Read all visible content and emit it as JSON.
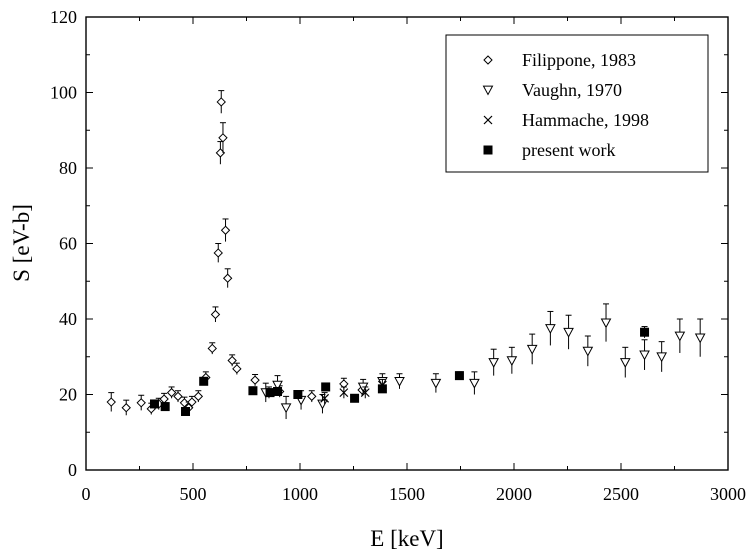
{
  "chart_data": {
    "type": "scatter",
    "xlabel": "E [keV]",
    "ylabel": "S [eV-b]",
    "xlim": [
      0,
      3000
    ],
    "ylim": [
      0,
      120
    ],
    "x_ticks": [
      0,
      500,
      1000,
      1500,
      2000,
      2500,
      3000
    ],
    "y_ticks": [
      0,
      20,
      40,
      60,
      80,
      100,
      120
    ],
    "grid": false,
    "legend_position": "top-right",
    "series": [
      {
        "name": "Filippone, 1983",
        "marker": "diamond-open",
        "points": [
          {
            "x": 118,
            "y": 18.0,
            "err": 2.5
          },
          {
            "x": 188,
            "y": 16.5,
            "err": 2.0
          },
          {
            "x": 258,
            "y": 17.8,
            "err": 2.0
          },
          {
            "x": 305,
            "y": 16.2,
            "err": 1.5
          },
          {
            "x": 340,
            "y": 17.5,
            "err": 1.5
          },
          {
            "x": 365,
            "y": 18.8,
            "err": 1.5
          },
          {
            "x": 400,
            "y": 20.5,
            "err": 1.5
          },
          {
            "x": 430,
            "y": 19.5,
            "err": 1.5
          },
          {
            "x": 460,
            "y": 17.8,
            "err": 1.5
          },
          {
            "x": 480,
            "y": 16.5,
            "err": 1.5
          },
          {
            "x": 495,
            "y": 18.0,
            "err": 1.5
          },
          {
            "x": 525,
            "y": 19.5,
            "err": 1.5
          },
          {
            "x": 560,
            "y": 24.5,
            "err": 1.5
          },
          {
            "x": 590,
            "y": 32.2,
            "err": 1.5
          },
          {
            "x": 605,
            "y": 41.2,
            "err": 2.0
          },
          {
            "x": 618,
            "y": 57.5,
            "err": 2.5
          },
          {
            "x": 628,
            "y": 84.0,
            "err": 3.0
          },
          {
            "x": 632,
            "y": 97.5,
            "err": 3.0
          },
          {
            "x": 640,
            "y": 88.0,
            "err": 4.0
          },
          {
            "x": 652,
            "y": 63.5,
            "err": 3.0
          },
          {
            "x": 662,
            "y": 50.8,
            "err": 2.5
          },
          {
            "x": 683,
            "y": 29.0,
            "err": 1.5
          },
          {
            "x": 705,
            "y": 26.8,
            "err": 1.5
          },
          {
            "x": 790,
            "y": 23.8,
            "err": 1.5
          },
          {
            "x": 855,
            "y": 20.5,
            "err": 1.5
          },
          {
            "x": 905,
            "y": 20.8,
            "err": 1.5
          },
          {
            "x": 1055,
            "y": 19.5,
            "err": 1.5
          },
          {
            "x": 1205,
            "y": 22.8,
            "err": 1.5
          },
          {
            "x": 1290,
            "y": 21.2,
            "err": 1.5
          }
        ]
      },
      {
        "name": "Vaughn, 1970",
        "marker": "triangle-down-open",
        "points": [
          {
            "x": 840,
            "y": 20.5,
            "err": 2.5
          },
          {
            "x": 895,
            "y": 22.5,
            "err": 2.5
          },
          {
            "x": 935,
            "y": 16.5,
            "err": 3.0
          },
          {
            "x": 1005,
            "y": 18.5,
            "err": 2.5
          },
          {
            "x": 1105,
            "y": 17.5,
            "err": 2.5
          },
          {
            "x": 1295,
            "y": 22.0,
            "err": 2.0
          },
          {
            "x": 1385,
            "y": 23.5,
            "err": 2.0
          },
          {
            "x": 1465,
            "y": 23.5,
            "err": 2.0
          },
          {
            "x": 1635,
            "y": 23.0,
            "err": 2.5
          },
          {
            "x": 1815,
            "y": 23.0,
            "err": 3.0
          },
          {
            "x": 1905,
            "y": 28.5,
            "err": 3.5
          },
          {
            "x": 1990,
            "y": 29.0,
            "err": 3.5
          },
          {
            "x": 2085,
            "y": 32.0,
            "err": 4.0
          },
          {
            "x": 2170,
            "y": 37.5,
            "err": 4.5
          },
          {
            "x": 2255,
            "y": 36.5,
            "err": 4.5
          },
          {
            "x": 2345,
            "y": 31.5,
            "err": 4.0
          },
          {
            "x": 2430,
            "y": 39.0,
            "err": 5.0
          },
          {
            "x": 2520,
            "y": 28.5,
            "err": 4.0
          },
          {
            "x": 2610,
            "y": 30.5,
            "err": 4.0
          },
          {
            "x": 2690,
            "y": 30.0,
            "err": 4.0
          },
          {
            "x": 2775,
            "y": 35.5,
            "err": 4.5
          },
          {
            "x": 2870,
            "y": 35.0,
            "err": 5.0
          }
        ]
      },
      {
        "name": "Hammache, 1998",
        "marker": "x",
        "points": [
          {
            "x": 1115,
            "y": 19.0,
            "err": 1.5
          },
          {
            "x": 1205,
            "y": 20.5,
            "err": 1.5
          },
          {
            "x": 1305,
            "y": 20.5,
            "err": 1.5
          },
          {
            "x": 1385,
            "y": 22.5,
            "err": 1.5
          }
        ]
      },
      {
        "name": "present work",
        "marker": "square-filled",
        "points": [
          {
            "x": 320,
            "y": 17.5,
            "err": 1.0
          },
          {
            "x": 370,
            "y": 16.8,
            "err": 1.0
          },
          {
            "x": 465,
            "y": 15.5,
            "err": 1.0
          },
          {
            "x": 550,
            "y": 23.5,
            "err": 1.0
          },
          {
            "x": 780,
            "y": 21.0,
            "err": 1.0
          },
          {
            "x": 860,
            "y": 20.5,
            "err": 1.0
          },
          {
            "x": 895,
            "y": 20.8,
            "err": 1.0
          },
          {
            "x": 990,
            "y": 20.0,
            "err": 1.0
          },
          {
            "x": 1120,
            "y": 22.0,
            "err": 1.0
          },
          {
            "x": 1255,
            "y": 19.0,
            "err": 1.0
          },
          {
            "x": 1385,
            "y": 21.5,
            "err": 1.0
          },
          {
            "x": 1745,
            "y": 25.0,
            "err": 1.0
          },
          {
            "x": 2610,
            "y": 36.5,
            "err": 1.5
          }
        ]
      }
    ]
  }
}
